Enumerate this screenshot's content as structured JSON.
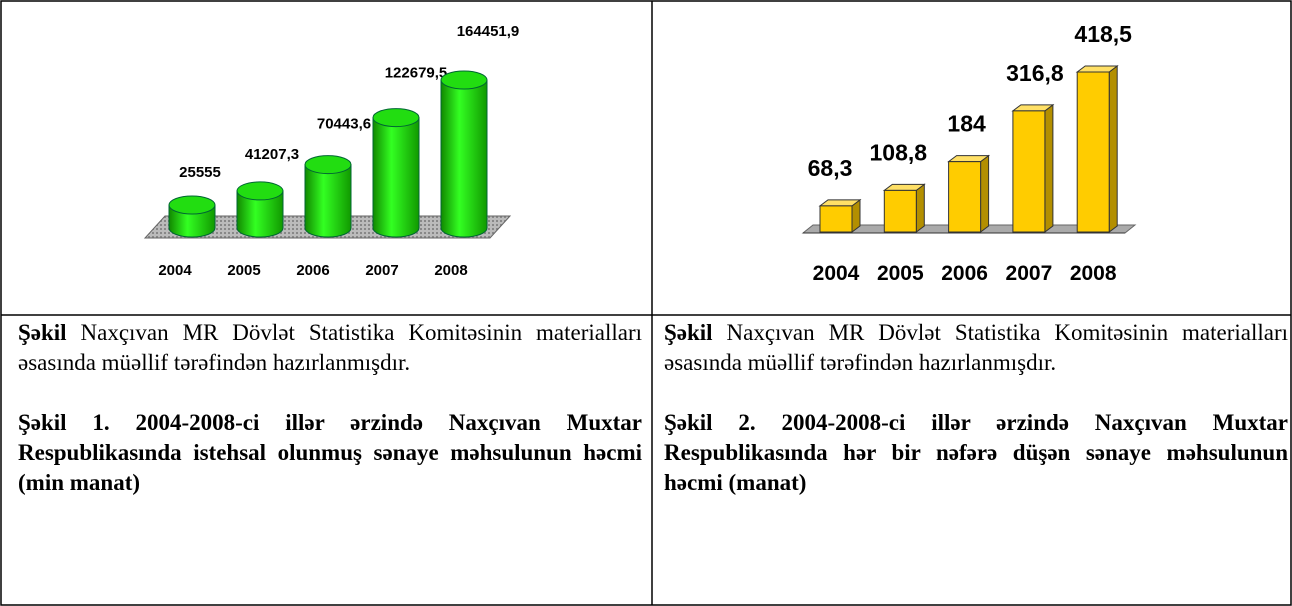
{
  "chart_data": [
    {
      "type": "cylinder",
      "categories": [
        "2004",
        "2005",
        "2006",
        "2007",
        "2008"
      ],
      "values": [
        25555,
        41207.3,
        70443.6,
        122679.5,
        164451.9
      ],
      "value_labels": [
        "25555",
        "41207,3",
        "70443,6",
        "122679,5",
        "164451,9"
      ],
      "color": "#22dd11"
    },
    {
      "type": "bar3d",
      "categories": [
        "2004",
        "2005",
        "2006",
        "2007",
        "2008"
      ],
      "values": [
        68.3,
        108.8,
        184,
        316.8,
        418.5
      ],
      "value_labels": [
        "68,3",
        "108,8",
        "184",
        "316,8",
        "418,5"
      ],
      "color": "#ffcc00"
    }
  ],
  "captions": [
    {
      "label": "Şəkil",
      "text": "Naxçıvan MR Dövlət Statistika Komitəsinin materialları əsasında müəllif tərəfindən hazırlanmışdır.",
      "title": "Şəkil 1. 2004-2008-ci illər ərzində Naxçıvan Muxtar Respublikasında istehsal olunmuş sənaye məhsulunun həcmi (min manat)"
    },
    {
      "label": "Şəkil",
      "text": "Naxçıvan MR Dövlət Statistika Komitəsinin materialları əsasında müəllif tərəfindən hazırlanmışdır.",
      "title": "Şəkil 2. 2004-2008-ci illər ərzində Naxçıvan Muxtar Respublikasında hər bir nəfərə düşən sənaye məhsulunun həcmi (manat)"
    }
  ]
}
